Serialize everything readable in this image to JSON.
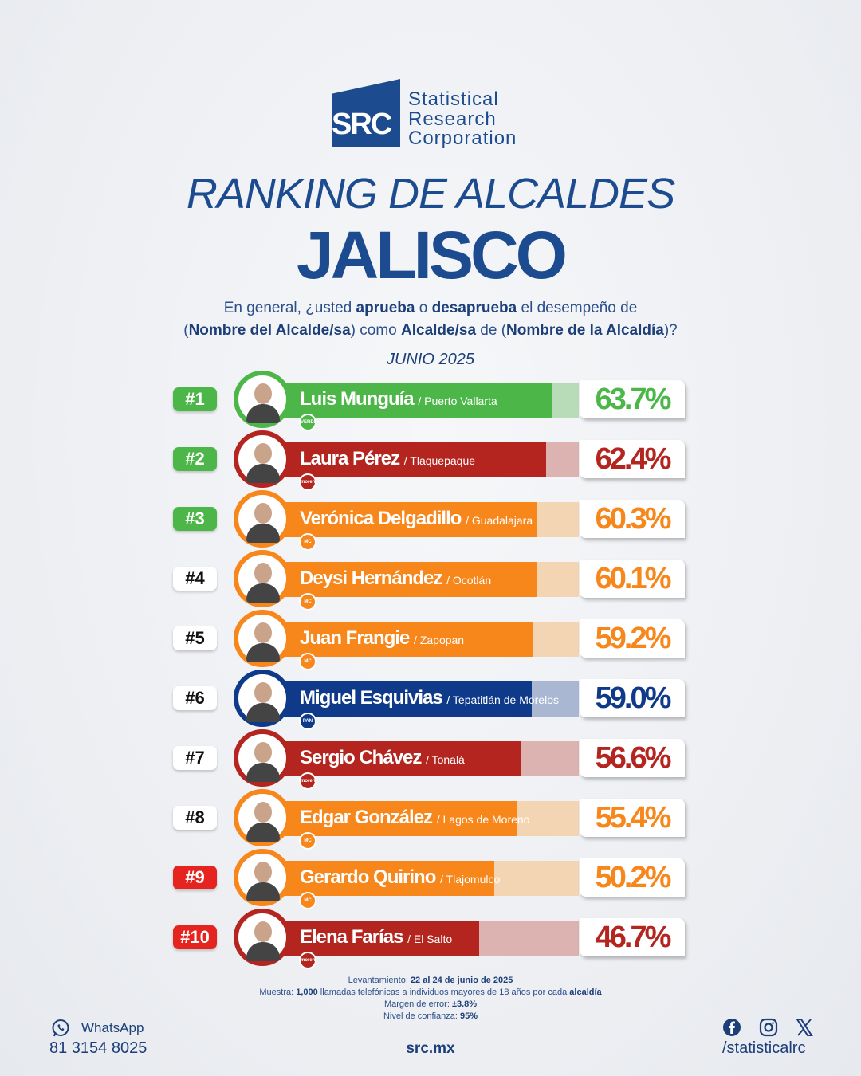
{
  "brand": {
    "mark": "SRC",
    "lines": [
      "Statistical",
      "Research",
      "Corporation"
    ]
  },
  "title_line1": "RANKING DE ALCALDES",
  "title_line2": "JALISCO",
  "question": {
    "p1": "En general, ¿usted ",
    "b1": "aprueba",
    "p2": " o ",
    "b2": "desaprueba",
    "p3": " el desempeño de",
    "p4": "(",
    "b3": "Nombre del Alcalde/sa",
    "p5": ") como ",
    "b4": "Alcalde/sa",
    "p6": " de (",
    "b5": "Nombre de la Alcaldía",
    "p7": ")?"
  },
  "month": "JUNIO 2025",
  "colors": {
    "PVEM": "#4cb748",
    "MORENA": "#b4251f",
    "MC": "#f7861b",
    "PAN": "#0f3a8a",
    "rank_top": "#4cb748",
    "rank_mid": "#ffffff",
    "rank_low": "#e5231f"
  },
  "chart_data": {
    "type": "bar",
    "orientation": "horizontal",
    "categories": [
      "Luis Munguía",
      "Laura Pérez",
      "Verónica Delgadillo",
      "Deysi Hernández",
      "Juan Frangie",
      "Miguel Esquivias",
      "Sergio Chávez",
      "Edgar González",
      "Gerardo Quirino",
      "Elena Farías"
    ],
    "values": [
      63.7,
      62.4,
      60.3,
      60.1,
      59.2,
      59.0,
      56.6,
      55.4,
      50.2,
      46.7
    ],
    "items": [
      {
        "rank": "#1",
        "name": "Luis Munguía",
        "city": "/ Puerto Vallarta",
        "value": 63.7,
        "label": "63.7%",
        "party": "PVEM",
        "party_label": "VERDE",
        "rank_style": "top"
      },
      {
        "rank": "#2",
        "name": "Laura Pérez",
        "city": "/ Tlaquepaque",
        "value": 62.4,
        "label": "62.4%",
        "party": "MORENA",
        "party_label": "morena",
        "rank_style": "top"
      },
      {
        "rank": "#3",
        "name": "Verónica Delgadillo",
        "city": "/ Guadalajara",
        "value": 60.3,
        "label": "60.3%",
        "party": "MC",
        "party_label": "MC",
        "rank_style": "top"
      },
      {
        "rank": "#4",
        "name": "Deysi Hernández",
        "city": "/ Ocotlán",
        "value": 60.1,
        "label": "60.1%",
        "party": "MC",
        "party_label": "MC",
        "rank_style": "mid"
      },
      {
        "rank": "#5",
        "name": "Juan Frangie",
        "city": "/ Zapopan",
        "value": 59.2,
        "label": "59.2%",
        "party": "MC",
        "party_label": "MC",
        "rank_style": "mid"
      },
      {
        "rank": "#6",
        "name": "Miguel Esquivias",
        "city": "/ Tepatitlán de Morelos",
        "value": 59.0,
        "label": "59.0%",
        "party": "PAN",
        "party_label": "PAN",
        "rank_style": "mid"
      },
      {
        "rank": "#7",
        "name": "Sergio Chávez",
        "city": "/ Tonalá",
        "value": 56.6,
        "label": "56.6%",
        "party": "MORENA",
        "party_label": "morena",
        "rank_style": "mid"
      },
      {
        "rank": "#8",
        "name": "Edgar González",
        "city": "/ Lagos de Moreno",
        "value": 55.4,
        "label": "55.4%",
        "party": "MC",
        "party_label": "MC",
        "rank_style": "mid"
      },
      {
        "rank": "#9",
        "name": "Gerardo Quirino",
        "city": "/ Tlajomulco",
        "value": 50.2,
        "label": "50.2%",
        "party": "MC",
        "party_label": "MC",
        "rank_style": "low"
      },
      {
        "rank": "#10",
        "name": "Elena Farías",
        "city": "/ El Salto",
        "value": 46.7,
        "label": "46.7%",
        "party": "MORENA",
        "party_label": "morena",
        "rank_style": "low"
      }
    ],
    "xlim": [
      0,
      70
    ]
  },
  "notes": {
    "l1a": "Levantamiento: ",
    "l1b": "22 al 24 de junio de 2025",
    "l2a": "Muestra: ",
    "l2b": "1,000",
    "l2c": " llamadas telefónicas a individuos mayores de 18 años por cada ",
    "l2d": "alcaldía",
    "l3a": "Margen de error: ",
    "l3b": "±3.8%",
    "l4a": "Nivel de confianza: ",
    "l4b": "95%"
  },
  "footer": {
    "whatsapp_label": "WhatsApp",
    "phone": "81 3154 8025",
    "website": "src.mx",
    "social_handle": "/statisticalrc"
  }
}
